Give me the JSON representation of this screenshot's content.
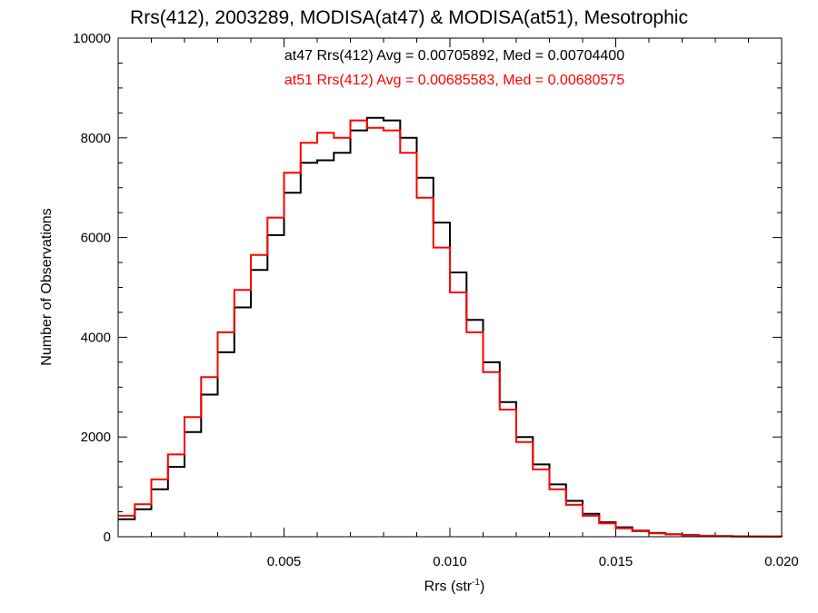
{
  "chart_data": {
    "type": "line",
    "title": "Rrs(412), 2003289, MODISA(at47) & MODISA(at51), Mesotrophic",
    "xlabel_text": "Rrs (str",
    "xlabel_sup": "-1",
    "xlabel_suffix": ")",
    "ylabel": "Number of Observations",
    "xlim": [
      0.0,
      0.02
    ],
    "ylim": [
      0,
      10000
    ],
    "xticks": [
      0.005,
      0.01,
      0.015,
      0.02
    ],
    "xtick_labels": [
      "0.005",
      "0.010",
      "0.015",
      "0.020"
    ],
    "yticks": [
      0,
      2000,
      4000,
      6000,
      8000,
      10000
    ],
    "ytick_labels": [
      "0",
      "2000",
      "4000",
      "6000",
      "8000",
      "10000"
    ],
    "grid": false,
    "annotations": [
      {
        "text": "at47 Rrs(412) Avg = 0.00705892, Med = 0.00704400",
        "color": "#000000"
      },
      {
        "text": "at51 Rrs(412) Avg = 0.00685583, Med = 0.00680575",
        "color": "#ff0000"
      }
    ],
    "series": [
      {
        "color": "#000000",
        "x": [
          0.0,
          0.0005,
          0.001,
          0.0015,
          0.002,
          0.0025,
          0.003,
          0.0035,
          0.004,
          0.0045,
          0.005,
          0.0055,
          0.006,
          0.0065,
          0.007,
          0.0075,
          0.008,
          0.0085,
          0.009,
          0.0095,
          0.01,
          0.0105,
          0.011,
          0.0115,
          0.012,
          0.0125,
          0.013,
          0.0135,
          0.014,
          0.0145,
          0.015,
          0.0155,
          0.016,
          0.0165,
          0.017,
          0.0175,
          0.018,
          0.0185,
          0.019,
          0.0195,
          0.02
        ],
        "y": [
          350,
          550,
          950,
          1400,
          2100,
          2850,
          3700,
          4600,
          5350,
          6050,
          6900,
          7500,
          7550,
          7700,
          8150,
          8400,
          8350,
          8000,
          7200,
          6300,
          5300,
          4350,
          3500,
          2700,
          2000,
          1450,
          1050,
          720,
          460,
          290,
          190,
          120,
          75,
          50,
          35,
          20,
          12,
          8,
          5,
          3,
          2
        ]
      },
      {
        "color": "#ff0000",
        "x": [
          0.0,
          0.0005,
          0.001,
          0.0015,
          0.002,
          0.0025,
          0.003,
          0.0035,
          0.004,
          0.0045,
          0.005,
          0.0055,
          0.006,
          0.0065,
          0.007,
          0.0075,
          0.008,
          0.0085,
          0.009,
          0.0095,
          0.01,
          0.0105,
          0.011,
          0.0115,
          0.012,
          0.0125,
          0.013,
          0.0135,
          0.014,
          0.0145,
          0.015,
          0.0155,
          0.016,
          0.0165,
          0.017,
          0.0175,
          0.018,
          0.0185,
          0.019,
          0.0195,
          0.02
        ],
        "y": [
          420,
          650,
          1150,
          1650,
          2400,
          3200,
          4100,
          4950,
          5650,
          6400,
          7300,
          7900,
          8100,
          8000,
          8350,
          8200,
          8150,
          7700,
          6800,
          5800,
          4900,
          4100,
          3300,
          2550,
          1900,
          1350,
          950,
          640,
          420,
          270,
          170,
          110,
          70,
          45,
          30,
          18,
          10,
          6,
          4,
          2,
          1
        ]
      }
    ]
  }
}
